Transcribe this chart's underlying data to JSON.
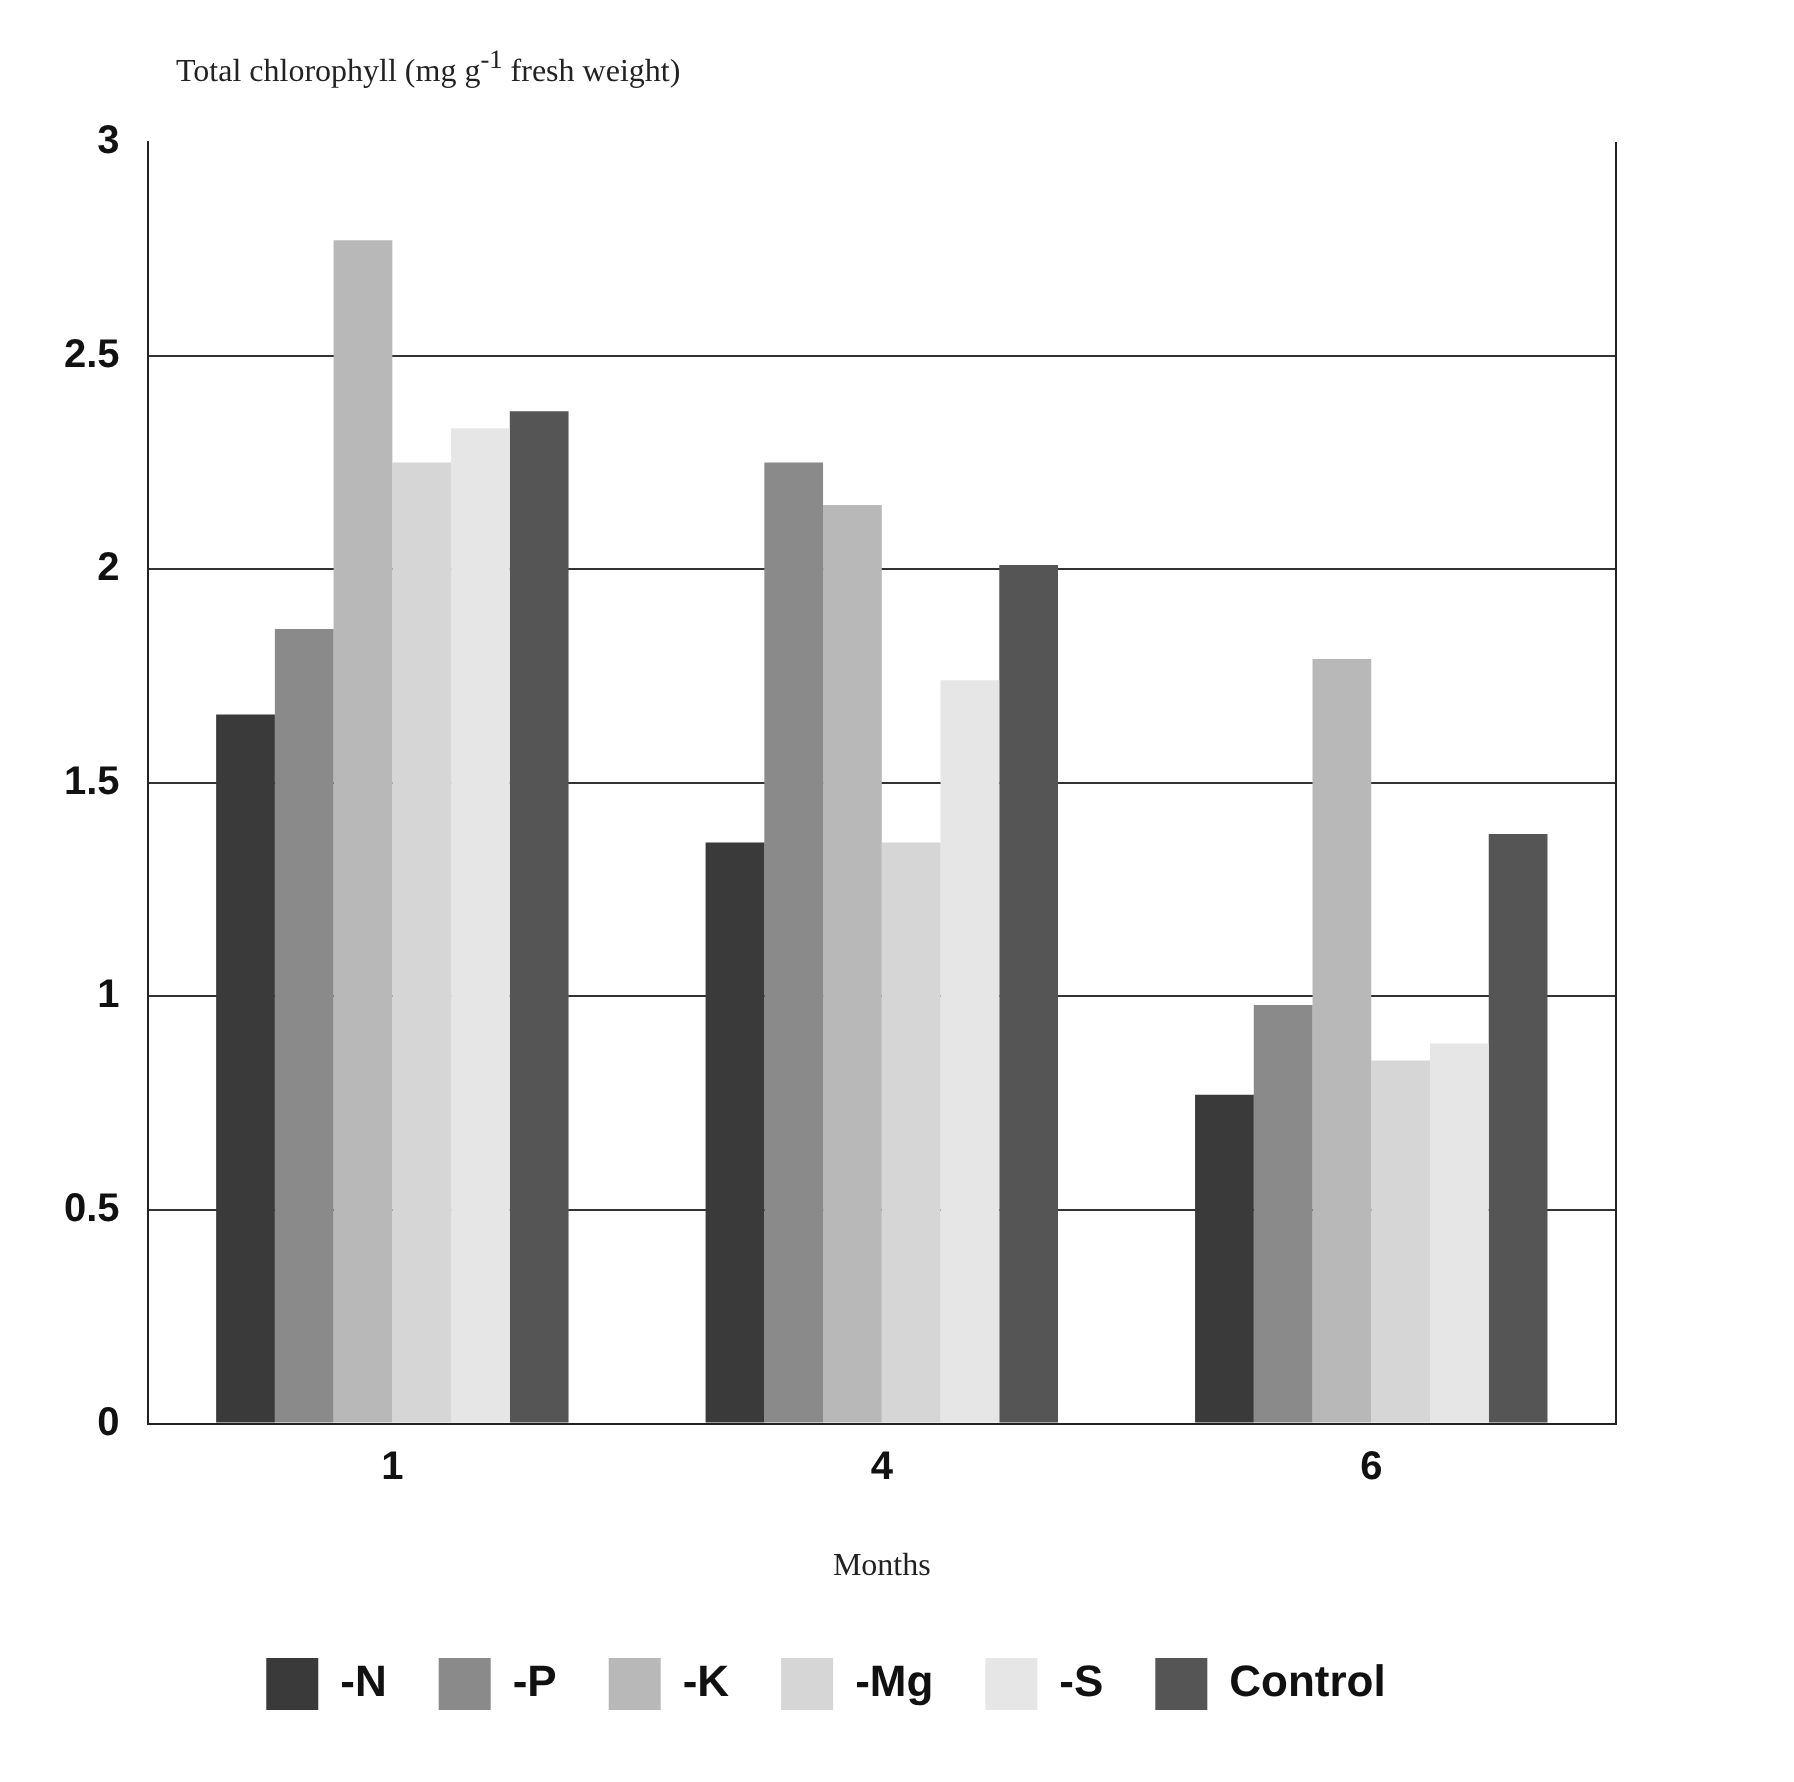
{
  "chart_data": {
    "type": "bar",
    "ylabel": "Total chlorophyll (mg g$^{-1}$ fresh weight)",
    "xlabel": "Months",
    "categories": [
      "1",
      "4",
      "6"
    ],
    "series": [
      {
        "name": "-N",
        "color": "#3a3a3a",
        "values": [
          1.66,
          1.36,
          0.77
        ]
      },
      {
        "name": "-P",
        "color": "#8a8a8a",
        "values": [
          1.86,
          2.25,
          0.98
        ]
      },
      {
        "name": "-K",
        "color": "#b8b8b8",
        "values": [
          2.77,
          2.15,
          1.79
        ]
      },
      {
        "name": "-Mg",
        "color": "#d6d6d6",
        "values": [
          2.25,
          1.36,
          0.85
        ]
      },
      {
        "name": "-S",
        "color": "#e6e6e6",
        "values": [
          2.33,
          1.74,
          0.89
        ]
      },
      {
        "name": "Control",
        "color": "#555555",
        "values": [
          2.37,
          2.01,
          1.38
        ]
      }
    ],
    "ylim": [
      0,
      3
    ],
    "yticks": [
      0,
      0.5,
      1,
      1.5,
      2,
      2.5,
      3
    ],
    "grid": "y",
    "legend": "bottom"
  }
}
